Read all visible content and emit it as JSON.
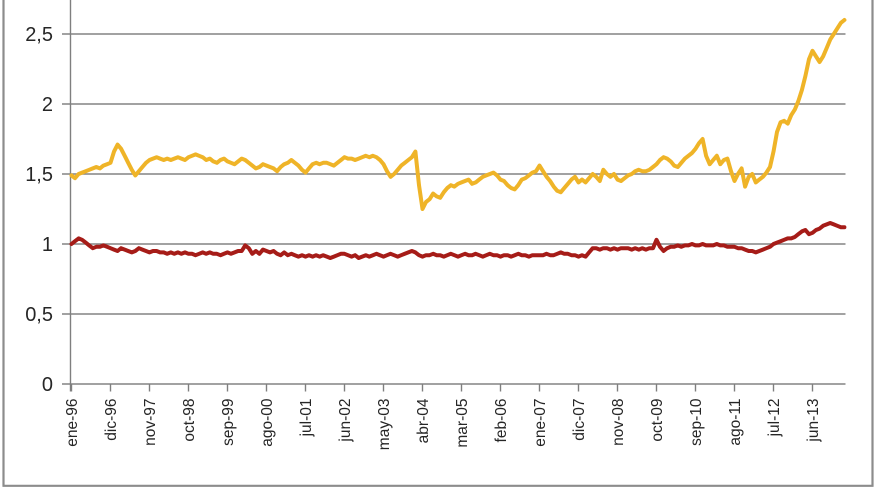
{
  "chart_data": {
    "type": "line",
    "title": "",
    "legend": "none",
    "grid": "horizontal",
    "x_axis": {
      "frequency": "monthly",
      "start_month": "ene-96",
      "end_month": "mar-14",
      "months_between_ticks": 11,
      "tick_labels": [
        "ene-96",
        "dic-96",
        "nov-97",
        "oct-98",
        "sep-99",
        "ago-00",
        "jul-01",
        "jun-02",
        "may-03",
        "abr-04",
        "mar-05",
        "feb-06",
        "ene-07",
        "dic-07",
        "nov-08",
        "oct-09",
        "sep-10",
        "ago-11",
        "jul-12",
        "jun-13"
      ]
    },
    "y_axis": {
      "decimal_separator": ",",
      "tick_labels": [
        "0",
        "0,5",
        "1",
        "1,5",
        "2",
        "2,5"
      ],
      "tick_values": [
        0,
        0.5,
        1,
        1.5,
        2,
        2.5
      ],
      "range_shown": [
        0,
        2.65
      ]
    },
    "colors": {
      "gold_series": "#EFB428",
      "dark_red_series": "#A61C18",
      "gridline": "#848484",
      "axis": "#7f7f7f",
      "frame": "#8c8c8c",
      "label_text": "#262626"
    },
    "series": [
      {
        "id": "gold-line",
        "color_key": "gold_series",
        "values": [
          1.49,
          1.47,
          1.5,
          1.51,
          1.52,
          1.53,
          1.54,
          1.55,
          1.54,
          1.56,
          1.57,
          1.58,
          1.66,
          1.71,
          1.68,
          1.63,
          1.58,
          1.53,
          1.49,
          1.52,
          1.55,
          1.58,
          1.6,
          1.61,
          1.62,
          1.61,
          1.6,
          1.61,
          1.6,
          1.61,
          1.62,
          1.61,
          1.6,
          1.62,
          1.63,
          1.64,
          1.63,
          1.62,
          1.6,
          1.61,
          1.59,
          1.58,
          1.6,
          1.61,
          1.59,
          1.58,
          1.57,
          1.59,
          1.61,
          1.6,
          1.58,
          1.56,
          1.54,
          1.55,
          1.57,
          1.56,
          1.55,
          1.54,
          1.52,
          1.55,
          1.57,
          1.58,
          1.6,
          1.58,
          1.56,
          1.53,
          1.51,
          1.54,
          1.57,
          1.58,
          1.57,
          1.58,
          1.58,
          1.57,
          1.56,
          1.58,
          1.6,
          1.62,
          1.61,
          1.61,
          1.6,
          1.61,
          1.62,
          1.63,
          1.62,
          1.63,
          1.62,
          1.6,
          1.57,
          1.52,
          1.48,
          1.5,
          1.53,
          1.56,
          1.58,
          1.6,
          1.62,
          1.66,
          1.42,
          1.25,
          1.3,
          1.32,
          1.36,
          1.34,
          1.33,
          1.37,
          1.4,
          1.42,
          1.41,
          1.43,
          1.44,
          1.45,
          1.46,
          1.43,
          1.44,
          1.46,
          1.48,
          1.49,
          1.5,
          1.51,
          1.49,
          1.46,
          1.45,
          1.42,
          1.4,
          1.39,
          1.42,
          1.46,
          1.47,
          1.49,
          1.51,
          1.52,
          1.56,
          1.52,
          1.48,
          1.45,
          1.41,
          1.38,
          1.37,
          1.4,
          1.43,
          1.46,
          1.48,
          1.44,
          1.46,
          1.44,
          1.47,
          1.5,
          1.48,
          1.45,
          1.53,
          1.5,
          1.48,
          1.5,
          1.46,
          1.45,
          1.47,
          1.49,
          1.5,
          1.52,
          1.53,
          1.52,
          1.52,
          1.53,
          1.55,
          1.57,
          1.6,
          1.62,
          1.61,
          1.59,
          1.56,
          1.55,
          1.58,
          1.61,
          1.63,
          1.65,
          1.68,
          1.72,
          1.75,
          1.63,
          1.57,
          1.6,
          1.63,
          1.57,
          1.6,
          1.61,
          1.52,
          1.45,
          1.5,
          1.54,
          1.41,
          1.48,
          1.5,
          1.44,
          1.46,
          1.48,
          1.51,
          1.55,
          1.66,
          1.8,
          1.87,
          1.88,
          1.86,
          1.92,
          1.96,
          2.02,
          2.1,
          2.2,
          2.32,
          2.38,
          2.34,
          2.3,
          2.34,
          2.4,
          2.46,
          2.5,
          2.54,
          2.58,
          2.6
        ]
      },
      {
        "id": "dark-red-line",
        "color_key": "dark_red_series",
        "values": [
          1.0,
          1.02,
          1.04,
          1.03,
          1.01,
          0.99,
          0.97,
          0.98,
          0.98,
          0.99,
          0.98,
          0.97,
          0.96,
          0.95,
          0.97,
          0.96,
          0.95,
          0.94,
          0.95,
          0.97,
          0.96,
          0.95,
          0.94,
          0.95,
          0.95,
          0.94,
          0.94,
          0.93,
          0.94,
          0.93,
          0.94,
          0.93,
          0.94,
          0.93,
          0.93,
          0.92,
          0.93,
          0.94,
          0.93,
          0.94,
          0.93,
          0.93,
          0.92,
          0.93,
          0.94,
          0.93,
          0.94,
          0.95,
          0.95,
          0.99,
          0.97,
          0.93,
          0.95,
          0.93,
          0.96,
          0.95,
          0.94,
          0.95,
          0.93,
          0.92,
          0.94,
          0.92,
          0.93,
          0.92,
          0.91,
          0.92,
          0.91,
          0.92,
          0.91,
          0.92,
          0.91,
          0.92,
          0.91,
          0.9,
          0.91,
          0.92,
          0.93,
          0.93,
          0.92,
          0.91,
          0.92,
          0.9,
          0.91,
          0.92,
          0.91,
          0.92,
          0.93,
          0.92,
          0.91,
          0.92,
          0.93,
          0.92,
          0.91,
          0.92,
          0.93,
          0.94,
          0.95,
          0.94,
          0.92,
          0.91,
          0.92,
          0.92,
          0.93,
          0.92,
          0.92,
          0.91,
          0.92,
          0.93,
          0.92,
          0.91,
          0.92,
          0.93,
          0.92,
          0.92,
          0.93,
          0.92,
          0.91,
          0.92,
          0.93,
          0.92,
          0.92,
          0.91,
          0.92,
          0.92,
          0.91,
          0.92,
          0.93,
          0.92,
          0.92,
          0.91,
          0.92,
          0.92,
          0.92,
          0.92,
          0.93,
          0.92,
          0.92,
          0.93,
          0.94,
          0.93,
          0.93,
          0.92,
          0.92,
          0.91,
          0.92,
          0.91,
          0.94,
          0.97,
          0.97,
          0.96,
          0.97,
          0.97,
          0.96,
          0.97,
          0.96,
          0.97,
          0.97,
          0.97,
          0.96,
          0.97,
          0.96,
          0.97,
          0.96,
          0.97,
          0.97,
          1.03,
          0.98,
          0.95,
          0.97,
          0.98,
          0.98,
          0.99,
          0.98,
          0.99,
          0.99,
          1.0,
          0.99,
          0.99,
          1.0,
          0.99,
          0.99,
          0.99,
          1.0,
          0.99,
          0.99,
          0.98,
          0.98,
          0.98,
          0.97,
          0.97,
          0.96,
          0.95,
          0.95,
          0.94,
          0.95,
          0.96,
          0.97,
          0.98,
          1.0,
          1.01,
          1.02,
          1.03,
          1.04,
          1.04,
          1.05,
          1.07,
          1.09,
          1.1,
          1.07,
          1.08,
          1.1,
          1.11,
          1.13,
          1.14,
          1.15,
          1.14,
          1.13,
          1.12,
          1.12
        ]
      }
    ]
  }
}
